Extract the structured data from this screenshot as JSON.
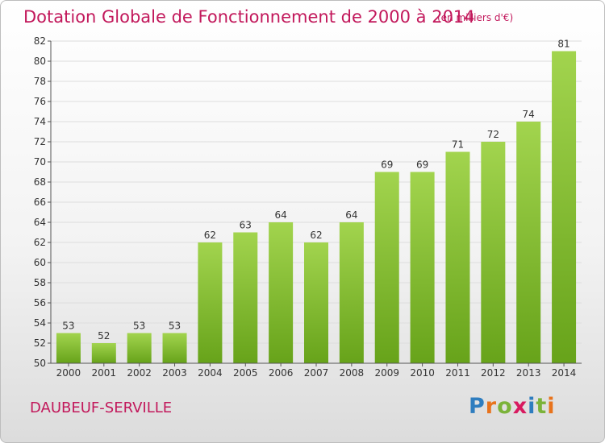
{
  "header": {
    "title": "Dotation Globale de Fonctionnement de 2000 à 2014",
    "unit": "(en milliers d'€)"
  },
  "footer": {
    "commune": "DAUBEUF-SERVILLE",
    "logo_text": "Proxiti",
    "logo_letters": [
      {
        "ch": "P",
        "color": "#2e7dbf"
      },
      {
        "ch": "r",
        "color": "#e8731c"
      },
      {
        "ch": "o",
        "color": "#7bb33a"
      },
      {
        "ch": "x",
        "color": "#d81b60"
      },
      {
        "ch": "i",
        "color": "#2e7dbf"
      },
      {
        "ch": "t",
        "color": "#7bb33a"
      },
      {
        "ch": "i",
        "color": "#e8731c"
      }
    ]
  },
  "colors": {
    "bar_light": "#a2d44e",
    "bar_dark": "#67a31a",
    "title": "#c2185b"
  },
  "chart_data": {
    "type": "bar",
    "title": "Dotation Globale de Fonctionnement de 2000 à 2014",
    "subtitle": "(en milliers d'€)",
    "xlabel": "",
    "ylabel": "",
    "categories": [
      "2000",
      "2001",
      "2002",
      "2003",
      "2004",
      "2005",
      "2006",
      "2007",
      "2008",
      "2009",
      "2010",
      "2011",
      "2012",
      "2013",
      "2014"
    ],
    "values": [
      53,
      52,
      53,
      53,
      62,
      63,
      64,
      62,
      64,
      69,
      69,
      71,
      72,
      74,
      81
    ],
    "ylim": [
      50,
      82
    ],
    "yticks": [
      50,
      52,
      54,
      56,
      58,
      60,
      62,
      64,
      66,
      68,
      70,
      72,
      74,
      76,
      78,
      80,
      82
    ],
    "grid": true,
    "data_labels": true
  }
}
